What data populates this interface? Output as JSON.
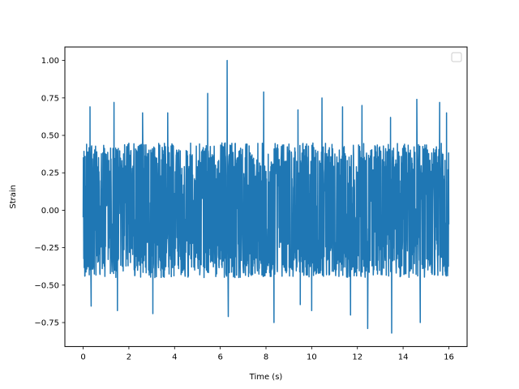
{
  "chart_data": {
    "type": "line",
    "title": "",
    "xlabel": "Time (s)",
    "ylabel": "Strain",
    "xlim": [
      -0.8,
      16.8
    ],
    "ylim": [
      -0.91,
      1.09
    ],
    "xticks": [
      0,
      2,
      4,
      6,
      8,
      10,
      12,
      14,
      16
    ],
    "xtick_labels": [
      "0",
      "2",
      "4",
      "6",
      "8",
      "10",
      "12",
      "14",
      "16"
    ],
    "yticks": [
      -0.75,
      -0.5,
      -0.25,
      0.0,
      0.25,
      0.5,
      0.75,
      1.0
    ],
    "ytick_labels": [
      "−0.75",
      "−0.50",
      "−0.25",
      "0.00",
      "0.25",
      "0.50",
      "0.75",
      "1.00"
    ],
    "grid": false,
    "legend": {
      "placement": "top-right",
      "entries": []
    },
    "series": [
      {
        "color": "#1f77b4",
        "x_range": [
          0,
          16
        ],
        "baseline_envelope": [
          -0.45,
          0.45
        ],
        "peaks": [
          {
            "x": 6.3,
            "y": 1.0
          },
          {
            "x": 7.9,
            "y": 0.79
          },
          {
            "x": 5.45,
            "y": 0.78
          },
          {
            "x": 10.45,
            "y": 0.75
          },
          {
            "x": 14.6,
            "y": 0.74
          },
          {
            "x": 1.35,
            "y": 0.72
          },
          {
            "x": 15.6,
            "y": 0.72
          },
          {
            "x": 0.3,
            "y": 0.69
          },
          {
            "x": 11.35,
            "y": 0.69
          },
          {
            "x": 12.2,
            "y": 0.7
          },
          {
            "x": 9.4,
            "y": 0.67
          },
          {
            "x": 13.45,
            "y": 0.62
          },
          {
            "x": 15.9,
            "y": 0.65
          },
          {
            "x": 2.6,
            "y": 0.65
          },
          {
            "x": 3.7,
            "y": 0.65
          },
          {
            "x": 13.5,
            "y": -0.82
          },
          {
            "x": 12.45,
            "y": -0.79
          },
          {
            "x": 8.35,
            "y": -0.75
          },
          {
            "x": 14.75,
            "y": -0.75
          },
          {
            "x": 3.05,
            "y": -0.69
          },
          {
            "x": 6.35,
            "y": -0.71
          },
          {
            "x": 11.7,
            "y": -0.7
          },
          {
            "x": 1.5,
            "y": -0.67
          },
          {
            "x": 0.35,
            "y": -0.64
          },
          {
            "x": 10.0,
            "y": -0.67
          },
          {
            "x": 9.5,
            "y": -0.63
          }
        ]
      }
    ]
  }
}
